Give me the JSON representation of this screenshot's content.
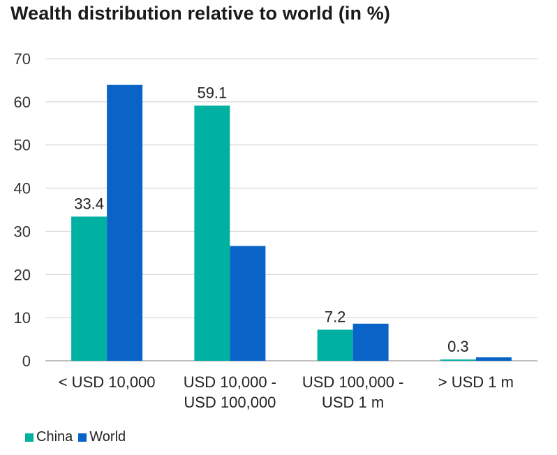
{
  "chart_data": {
    "type": "bar",
    "title": "Wealth distribution relative to world (in %)",
    "categories": [
      [
        "< USD 10,000"
      ],
      [
        "USD 10,000 -",
        "USD 100,000"
      ],
      [
        "USD 100,000 -",
        "USD 1 m"
      ],
      [
        "> USD 1 m"
      ]
    ],
    "series": [
      {
        "name": "China",
        "color": "#00b0a0",
        "values": [
          33.4,
          59.1,
          7.2,
          0.3
        ],
        "data_labels": [
          "33.4",
          "59.1",
          "7.2",
          "0.3"
        ]
      },
      {
        "name": "World",
        "color": "#0a64c8",
        "values": [
          63.9,
          26.6,
          8.6,
          0.8
        ]
      }
    ],
    "ylim": [
      0,
      70
    ],
    "yticks": [
      0,
      10,
      20,
      30,
      40,
      50,
      60,
      70
    ],
    "grid": true,
    "legend_position": "bottom-left"
  }
}
